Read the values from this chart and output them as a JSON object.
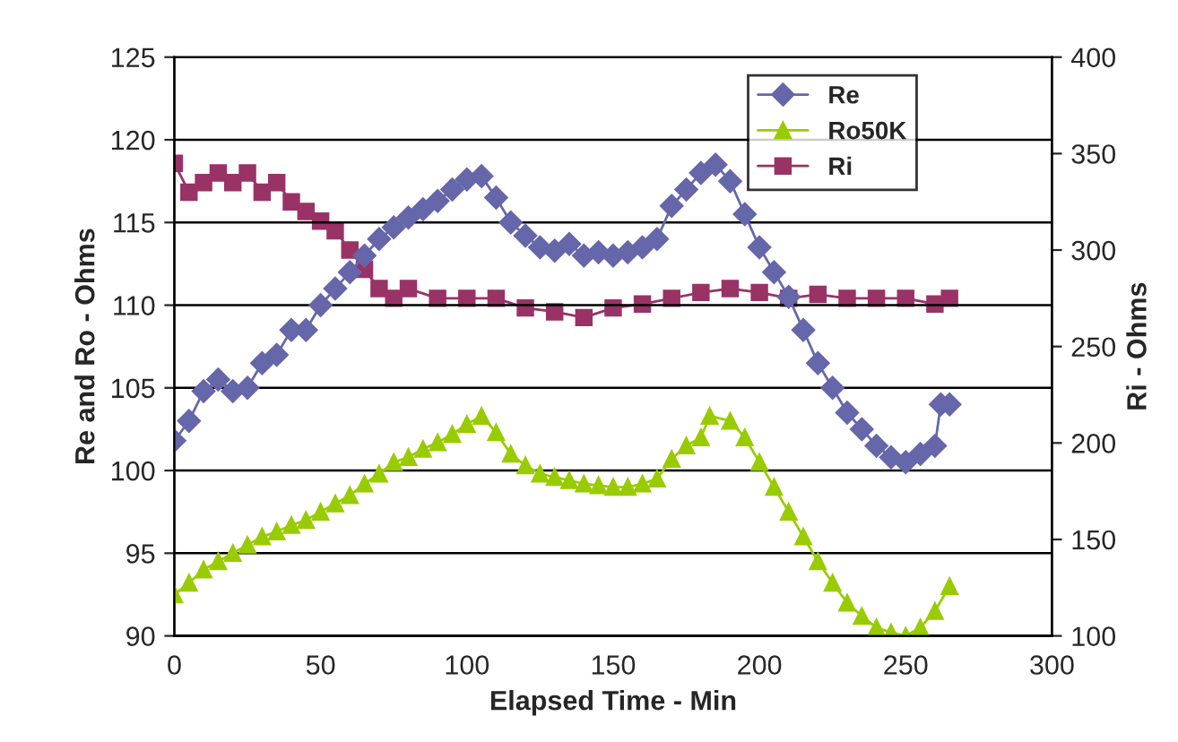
{
  "chart_data": {
    "type": "line",
    "xlabel": "Elapsed Time - Min",
    "ylabel": "Re and Ro - Ohms",
    "y2label": "Ri - Ohms",
    "xlim": [
      0,
      300
    ],
    "xticks": [
      0,
      50,
      100,
      150,
      200,
      250,
      300
    ],
    "ylim": [
      90,
      125
    ],
    "yticks": [
      90,
      95,
      100,
      105,
      110,
      115,
      120,
      125
    ],
    "y2lim": [
      100,
      400
    ],
    "y2ticks": [
      100,
      150,
      200,
      250,
      300,
      350,
      400
    ],
    "grid": "y",
    "legend": "top right",
    "line_style": "solid",
    "series": [
      {
        "name": "Re",
        "color": "#6666aa",
        "marker": "diamond",
        "x": [
          0,
          5,
          10,
          15,
          20,
          25,
          30,
          35,
          40,
          45,
          50,
          55,
          60,
          65,
          70,
          75,
          80,
          85,
          90,
          95,
          100,
          105,
          110,
          115,
          120,
          125,
          130,
          135,
          140,
          145,
          150,
          155,
          160,
          165,
          170,
          175,
          180,
          185,
          190,
          195,
          200,
          205,
          210,
          215,
          220,
          225,
          230,
          235,
          240,
          245,
          250,
          255,
          260,
          262,
          265
        ],
        "values": [
          101.8,
          103,
          104.8,
          105.5,
          104.8,
          105,
          106.5,
          107,
          108.5,
          108.5,
          110,
          111,
          112,
          113,
          114,
          114.7,
          115.3,
          115.8,
          116.3,
          117,
          117.6,
          117.8,
          116.5,
          115,
          114.2,
          113.5,
          113.3,
          113.7,
          113,
          113.2,
          113,
          113.2,
          113.5,
          114,
          116,
          117,
          118,
          118.5,
          117.5,
          115.5,
          113.5,
          112,
          110.5,
          108.5,
          106.5,
          105,
          103.5,
          102.5,
          101.5,
          100.8,
          100.5,
          101,
          101.5,
          104,
          104
        ]
      },
      {
        "name": "Ro50K",
        "color": "#99cc00",
        "marker": "triangle",
        "x": [
          0,
          5,
          10,
          15,
          20,
          25,
          30,
          35,
          40,
          45,
          50,
          55,
          60,
          65,
          70,
          75,
          80,
          85,
          90,
          95,
          100,
          105,
          110,
          115,
          120,
          125,
          130,
          135,
          140,
          145,
          150,
          155,
          160,
          165,
          170,
          175,
          180,
          183,
          190,
          195,
          200,
          205,
          210,
          215,
          220,
          225,
          230,
          235,
          240,
          245,
          250,
          255,
          260,
          265
        ],
        "values": [
          92.5,
          93.2,
          94,
          94.5,
          95,
          95.5,
          96,
          96.3,
          96.7,
          97,
          97.5,
          98,
          98.5,
          99.2,
          99.8,
          100.5,
          100.8,
          101.3,
          101.7,
          102.2,
          102.8,
          103.3,
          102.3,
          101,
          100.3,
          99.8,
          99.6,
          99.4,
          99.2,
          99.1,
          99,
          99,
          99.2,
          99.5,
          100.7,
          101.5,
          102,
          103.3,
          103,
          102,
          100.5,
          99,
          97.5,
          96,
          94.5,
          93.2,
          92,
          91.2,
          90.5,
          90.2,
          90,
          90.5,
          91.5,
          93
        ]
      },
      {
        "name": "Ri",
        "color": "#993366",
        "marker": "square",
        "axis": "y2",
        "x": [
          0,
          5,
          10,
          15,
          20,
          25,
          30,
          35,
          40,
          45,
          50,
          55,
          60,
          65,
          70,
          75,
          80,
          90,
          100,
          110,
          120,
          130,
          140,
          150,
          160,
          170,
          180,
          190,
          200,
          210,
          220,
          230,
          240,
          250,
          260,
          265
        ],
        "values": [
          345,
          330,
          335,
          340,
          335,
          340,
          330,
          335,
          325,
          320,
          315,
          310,
          300,
          290,
          280,
          275,
          280,
          275,
          275,
          275,
          270,
          268,
          265,
          270,
          272,
          275,
          278,
          280,
          278,
          275,
          277,
          275,
          275,
          275,
          272,
          275
        ]
      }
    ]
  }
}
